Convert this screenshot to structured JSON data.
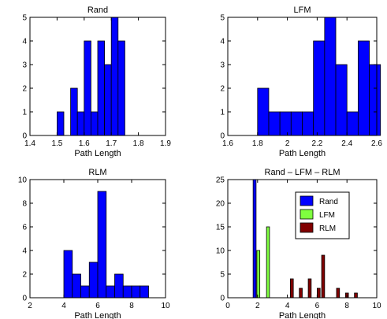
{
  "chart_data": [
    {
      "type": "bar",
      "title": "Rand",
      "xlabel": "Path Length",
      "ylabel": "",
      "xlim": [
        1.4,
        1.9
      ],
      "ylim": [
        0,
        5
      ],
      "xticks": [
        "1.4",
        "1.5",
        "1.6",
        "1.7",
        "1.8",
        "1.9"
      ],
      "yticks": [
        "0",
        "1",
        "2",
        "3",
        "4",
        "5"
      ],
      "bin_width": 0.025,
      "series": [
        {
          "color": "#0000ff",
          "bins": [
            [
              1.5,
              1
            ],
            [
              1.55,
              2
            ],
            [
              1.575,
              1
            ],
            [
              1.6,
              4
            ],
            [
              1.625,
              1
            ],
            [
              1.65,
              4
            ],
            [
              1.675,
              3
            ],
            [
              1.7,
              5
            ],
            [
              1.725,
              4
            ]
          ]
        }
      ]
    },
    {
      "type": "bar",
      "title": "LFM",
      "xlabel": "Path Length",
      "ylabel": "",
      "xlim": [
        1.6,
        2.6
      ],
      "ylim": [
        0,
        5
      ],
      "xticks": [
        "1.6",
        "1.8",
        "2",
        "2.2",
        "2.4",
        "2.6"
      ],
      "yticks": [
        "0",
        "1",
        "2",
        "3",
        "4",
        "5"
      ],
      "bin_width": 0.075,
      "series": [
        {
          "color": "#0000ff",
          "bins": [
            [
              1.8,
              2
            ],
            [
              1.875,
              1
            ],
            [
              1.95,
              1
            ],
            [
              2.025,
              1
            ],
            [
              2.1,
              1
            ],
            [
              2.175,
              4
            ],
            [
              2.25,
              5
            ],
            [
              2.325,
              3
            ],
            [
              2.4,
              1
            ],
            [
              2.475,
              4
            ],
            [
              2.55,
              3
            ]
          ]
        }
      ]
    },
    {
      "type": "bar",
      "title": "RLM",
      "xlabel": "Path Length",
      "ylabel": "",
      "xlim": [
        2,
        10
      ],
      "ylim": [
        0,
        10
      ],
      "xticks": [
        "2",
        "4",
        "6",
        "8",
        "10"
      ],
      "yticks": [
        "0",
        "2",
        "4",
        "6",
        "8",
        "10"
      ],
      "bin_width": 0.5,
      "series": [
        {
          "color": "#0000ff",
          "bins": [
            [
              4,
              4
            ],
            [
              4.5,
              2
            ],
            [
              5,
              1
            ],
            [
              5.5,
              3
            ],
            [
              6,
              9
            ],
            [
              6.5,
              1
            ],
            [
              7,
              2
            ],
            [
              7.5,
              1
            ],
            [
              8,
              1
            ],
            [
              8.5,
              1
            ]
          ]
        }
      ]
    },
    {
      "type": "bar",
      "title": "Rand – LFM – RLM",
      "xlabel": "Path Length",
      "ylabel": "",
      "xlim": [
        0,
        10
      ],
      "ylim": [
        0,
        25
      ],
      "xticks": [
        "0",
        "2",
        "4",
        "6",
        "8",
        "10"
      ],
      "yticks": [
        "0",
        "5",
        "10",
        "15",
        "20",
        "25"
      ],
      "legend": {
        "position": "top-right"
      },
      "series": [
        {
          "name": "Rand",
          "color": "#0000ff",
          "bar_width": 0.2,
          "bins": [
            [
              1.7,
              25
            ]
          ]
        },
        {
          "name": "LFM",
          "color": "#7fff3f",
          "bar_width": 0.2,
          "bins": [
            [
              1.95,
              10
            ],
            [
              2.6,
              15
            ]
          ]
        },
        {
          "name": "RLM",
          "color": "#800000",
          "bar_width": 0.2,
          "bins": [
            [
              4.2,
              4
            ],
            [
              4.8,
              2
            ],
            [
              5.4,
              4
            ],
            [
              6,
              2
            ],
            [
              6.3,
              9
            ],
            [
              7.3,
              2
            ],
            [
              7.9,
              1
            ],
            [
              8.5,
              1
            ]
          ]
        }
      ]
    }
  ]
}
